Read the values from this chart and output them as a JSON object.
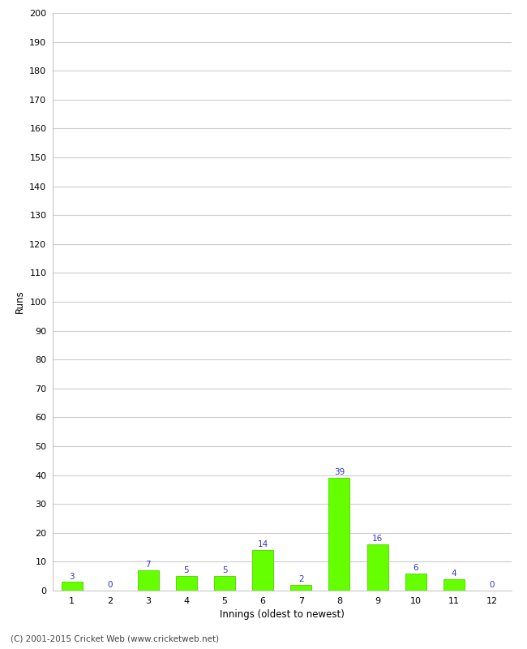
{
  "categories": [
    1,
    2,
    3,
    4,
    5,
    6,
    7,
    8,
    9,
    10,
    11,
    12
  ],
  "values": [
    3,
    0,
    7,
    5,
    5,
    14,
    2,
    39,
    16,
    6,
    4,
    0
  ],
  "bar_color": "#66ff00",
  "bar_edge_color": "#55dd00",
  "label_color": "#3333cc",
  "xlabel": "Innings (oldest to newest)",
  "ylabel": "Runs",
  "ylim": [
    0,
    200
  ],
  "ytick_step": 10,
  "footer": "(C) 2001-2015 Cricket Web (www.cricketweb.net)",
  "grid_color": "#cccccc",
  "background_color": "#ffffff",
  "label_fontsize": 7.5,
  "axis_tick_fontsize": 8,
  "axis_label_fontsize": 8.5,
  "footer_fontsize": 7.5
}
